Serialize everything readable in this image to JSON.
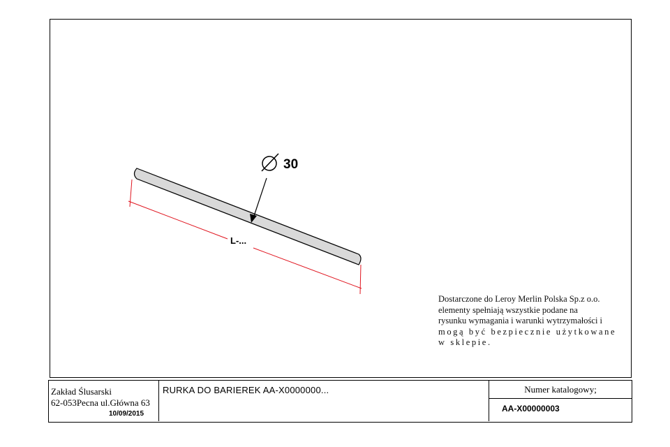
{
  "drawing": {
    "diameter_value": "30",
    "length_label": "L-...",
    "colors": {
      "dimension_line": "#e0141e",
      "pipe_fill": "#d9d9d9",
      "outline": "#000000"
    }
  },
  "note": {
    "lines": [
      "Dostarczone do Leroy Merlin Polska Sp.z o.o.",
      "elementy spełniają wszystkie podane na",
      "rysunku wymagania i warunki wytrzymałości i",
      "mogą być bezpiecznie użytkowane",
      "w sklepie."
    ]
  },
  "title_block": {
    "company_name": "Zakład Ślusarski",
    "company_address": "62-053Pecna ul.Główna 63",
    "date": "10/09/2015",
    "description": "RURKA DO BARIEREK  AA-X0000000...",
    "catalog_label": "Numer katalogowy;",
    "catalog_value": "AA-X00000003"
  }
}
